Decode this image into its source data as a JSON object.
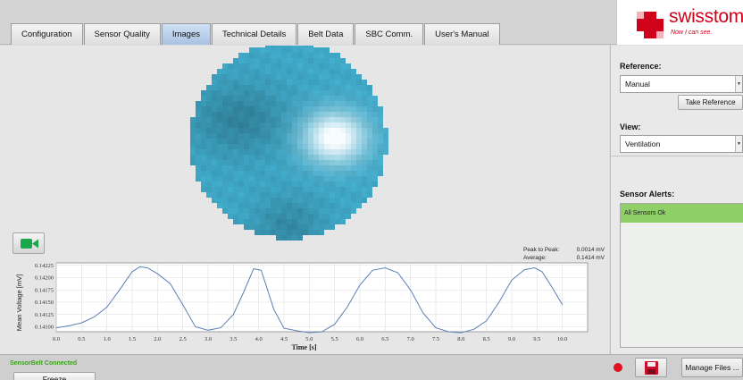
{
  "tabs": [
    {
      "label": "Configuration",
      "active": false
    },
    {
      "label": "Sensor Quality",
      "active": false
    },
    {
      "label": "Images",
      "active": true
    },
    {
      "label": "Technical Details",
      "active": false
    },
    {
      "label": "Belt Data",
      "active": false
    },
    {
      "label": "SBC Comm.",
      "active": false
    },
    {
      "label": "User's Manual",
      "active": false
    }
  ],
  "logo": {
    "name": "swisstom",
    "slogan": "Now I can see."
  },
  "stats": {
    "peak_label": "Peak to Peak:",
    "peak_value": "0.0014 mV",
    "avg_label": "Average:",
    "avg_value": "0.1414 mV"
  },
  "sidebar": {
    "reference_label": "Reference:",
    "reference_value": "Manual",
    "take_reference_label": "Take Reference",
    "view_label": "View:",
    "view_value": "Ventilation",
    "alerts_label": "Sensor Alerts:",
    "alert_item": "All Sensors Ok"
  },
  "bottom": {
    "status": "SensorBelt Connected",
    "freeze_label": "Freeze",
    "manage_label": "Manage Files ..."
  },
  "icons": {
    "video": "video-camera-icon",
    "save": "floppy-disk-icon",
    "record": "record-dot-icon"
  },
  "colors": {
    "accent": "#d0021b",
    "status_ok": "#8fcf67",
    "plot_line": "#5b7fb5",
    "eit_base": "#3fa7c6"
  },
  "chart_data": {
    "type": "line",
    "xlabel": "Time [s]",
    "ylabel": "Mean Voltage [mV]",
    "xlim": [
      0,
      10.5
    ],
    "ylim": [
      0.1409,
      0.1423
    ],
    "xticks": [
      0.0,
      0.5,
      1.0,
      1.5,
      2.0,
      2.5,
      3.0,
      3.5,
      4.0,
      4.5,
      5.0,
      5.5,
      6.0,
      6.5,
      7.0,
      7.5,
      8.0,
      8.5,
      9.0,
      9.5,
      10.0
    ],
    "yticks": [
      0.141,
      0.14125,
      0.1415,
      0.14175,
      0.142,
      0.14225
    ],
    "grid": true,
    "series": [
      {
        "x": [
          0.0,
          0.25,
          0.5,
          0.75,
          1.0,
          1.25,
          1.5,
          1.65,
          1.8,
          2.0,
          2.25,
          2.5,
          2.75,
          3.0,
          3.25,
          3.5,
          3.7,
          3.9,
          4.05,
          4.3,
          4.5,
          4.75,
          5.0,
          5.25,
          5.5,
          5.75,
          6.0,
          6.25,
          6.5,
          6.75,
          7.0,
          7.25,
          7.5,
          7.75,
          8.0,
          8.25,
          8.5,
          8.75,
          9.0,
          9.25,
          9.45,
          9.6,
          9.8,
          10.0
        ],
        "y": [
          0.14098,
          0.14102,
          0.14108,
          0.1412,
          0.1414,
          0.14175,
          0.14212,
          0.14222,
          0.1422,
          0.14208,
          0.14188,
          0.14145,
          0.141,
          0.14093,
          0.14098,
          0.14125,
          0.1417,
          0.14218,
          0.14215,
          0.14135,
          0.14097,
          0.14092,
          0.14088,
          0.1409,
          0.14105,
          0.1414,
          0.14185,
          0.14215,
          0.1422,
          0.1421,
          0.14175,
          0.14128,
          0.14098,
          0.1409,
          0.14088,
          0.14095,
          0.14112,
          0.1415,
          0.14195,
          0.14216,
          0.1422,
          0.14212,
          0.1418,
          0.14145
        ]
      }
    ]
  }
}
